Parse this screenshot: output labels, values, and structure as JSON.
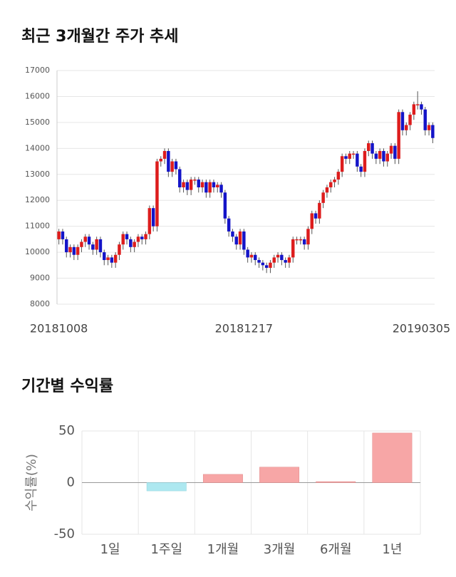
{
  "chart_data": [
    {
      "type": "candlestick",
      "title": "최근 3개월간 주가 추세",
      "categories": [
        "20181008",
        null,
        null,
        null,
        null,
        null,
        null,
        null,
        null,
        null,
        null,
        null,
        null,
        null,
        null,
        null,
        null,
        null,
        null,
        null,
        null,
        null,
        null,
        null,
        null,
        null,
        null,
        null,
        null,
        null,
        null,
        null,
        null,
        null,
        null,
        null,
        null,
        null,
        null,
        null,
        null,
        null,
        null,
        null,
        null,
        null,
        null,
        null,
        null,
        "20181217",
        null,
        null,
        null,
        null,
        null,
        null,
        null,
        null,
        null,
        null,
        null,
        null,
        null,
        null,
        null,
        null,
        null,
        null,
        null,
        null,
        null,
        null,
        null,
        null,
        null,
        null,
        null,
        null,
        null,
        null,
        null,
        null,
        null,
        null,
        null,
        null,
        null,
        null,
        null,
        null,
        null,
        null,
        null,
        null,
        null,
        null,
        "20190305",
        null,
        null,
        null
      ],
      "open": [
        10500,
        10800,
        10500,
        10000,
        10200,
        9900,
        10200,
        10400,
        10600,
        10300,
        10100,
        10500,
        10000,
        9700,
        9800,
        9600,
        9900,
        10300,
        10700,
        10500,
        10200,
        10400,
        10600,
        10500,
        10700,
        11700,
        11000,
        13500,
        13600,
        13900,
        13100,
        13500,
        13200,
        12500,
        12700,
        12400,
        12800,
        12800,
        12500,
        12700,
        12300,
        12700,
        12500,
        12600,
        12300,
        11300,
        10800,
        10600,
        10300,
        10800,
        10100,
        9800,
        9900,
        9700,
        9600,
        9500,
        9400,
        9600,
        9800,
        9900,
        9700,
        9600,
        9800,
        10500,
        10500,
        10500,
        10300,
        10900,
        11500,
        11300,
        11900,
        12300,
        12500,
        12700,
        12800,
        13100,
        13700,
        13600,
        13800,
        13800,
        13300,
        13100,
        13900,
        14200,
        13800,
        13600,
        13900,
        13500,
        13800,
        14100,
        13600,
        15400,
        14700,
        14900,
        15300,
        15700,
        15700,
        15500,
        14700,
        14900
      ],
      "high": [
        10900,
        10900,
        10600,
        10300,
        10300,
        10300,
        10500,
        10700,
        10700,
        10400,
        10600,
        10600,
        10100,
        9900,
        9900,
        10000,
        10400,
        10800,
        10800,
        10600,
        10500,
        10700,
        10700,
        10800,
        11800,
        11800,
        13600,
        13700,
        14000,
        14000,
        13600,
        13600,
        13300,
        12800,
        12800,
        12900,
        12900,
        12900,
        12800,
        12800,
        12800,
        12800,
        12700,
        12700,
        12400,
        11400,
        10900,
        10700,
        10900,
        10900,
        10200,
        10000,
        10000,
        9800,
        9700,
        9600,
        9700,
        9900,
        10000,
        10000,
        9800,
        9900,
        10600,
        10600,
        10600,
        10600,
        11000,
        11600,
        11600,
        12000,
        12400,
        12600,
        12800,
        12900,
        13200,
        13800,
        13800,
        13900,
        13900,
        13900,
        13400,
        14000,
        14300,
        14300,
        13900,
        14000,
        14000,
        13900,
        14200,
        14200,
        15500,
        15500,
        15000,
        15400,
        15800,
        16200,
        15800,
        15600,
        15000,
        15000
      ],
      "low": [
        10300,
        10300,
        9800,
        9800,
        9700,
        9700,
        10000,
        10200,
        10100,
        9900,
        9900,
        9800,
        9500,
        9500,
        9400,
        9400,
        9700,
        10100,
        10300,
        10000,
        10000,
        10200,
        10300,
        10300,
        10500,
        10800,
        10800,
        13300,
        13400,
        12900,
        12900,
        13000,
        12300,
        12300,
        12200,
        12200,
        12600,
        12300,
        12300,
        12100,
        12100,
        12300,
        12300,
        12100,
        11100,
        10600,
        10400,
        10100,
        10100,
        9900,
        9600,
        9600,
        9500,
        9400,
        9300,
        9200,
        9200,
        9400,
        9600,
        9500,
        9400,
        9400,
        9600,
        10300,
        10300,
        10100,
        10100,
        10700,
        11100,
        11100,
        11700,
        12100,
        12300,
        12500,
        12600,
        12900,
        13400,
        13400,
        13600,
        13100,
        12900,
        12900,
        13700,
        13600,
        13400,
        13400,
        13300,
        13300,
        13600,
        13400,
        13400,
        14500,
        14500,
        14700,
        15100,
        15500,
        15300,
        14500,
        14500,
        14200
      ],
      "close": [
        10800,
        10500,
        10000,
        10200,
        9900,
        10200,
        10400,
        10600,
        10300,
        10100,
        10500,
        10000,
        9700,
        9800,
        9600,
        9900,
        10300,
        10700,
        10500,
        10200,
        10400,
        10600,
        10500,
        10700,
        11700,
        11000,
        13500,
        13600,
        13900,
        13100,
        13500,
        13200,
        12500,
        12700,
        12400,
        12800,
        12800,
        12500,
        12700,
        12300,
        12700,
        12500,
        12600,
        12300,
        11300,
        10800,
        10600,
        10300,
        10800,
        10100,
        9800,
        9900,
        9700,
        9600,
        9500,
        9400,
        9600,
        9800,
        9900,
        9700,
        9600,
        9800,
        10500,
        10500,
        10500,
        10300,
        10900,
        11500,
        11300,
        11900,
        12300,
        12500,
        12700,
        12800,
        13100,
        13700,
        13600,
        13800,
        13800,
        13300,
        13100,
        13900,
        14200,
        13800,
        13600,
        13900,
        13500,
        13800,
        14100,
        13600,
        15400,
        14700,
        14900,
        15300,
        15700,
        15700,
        15500,
        14700,
        14900,
        14400
      ],
      "up_color": "#dd1c1c",
      "down_color": "#1414c8",
      "ylim": [
        8000,
        17000
      ],
      "yticks": [
        8000,
        9000,
        10000,
        11000,
        12000,
        13000,
        14000,
        15000,
        16000,
        17000
      ],
      "grid": true
    },
    {
      "type": "bar",
      "title": "기간별 수익률",
      "ylabel": "수익률(%)",
      "categories": [
        "1일",
        "1주일",
        "1개월",
        "3개월",
        "6개월",
        "1년"
      ],
      "values": [
        0,
        -8,
        8,
        15,
        1,
        48
      ],
      "positive_color": "#f7a6a6",
      "negative_color": "#ade8f0",
      "ylim": [
        -50,
        50
      ],
      "yticks": [
        -50,
        0,
        50
      ],
      "grid": true
    }
  ]
}
